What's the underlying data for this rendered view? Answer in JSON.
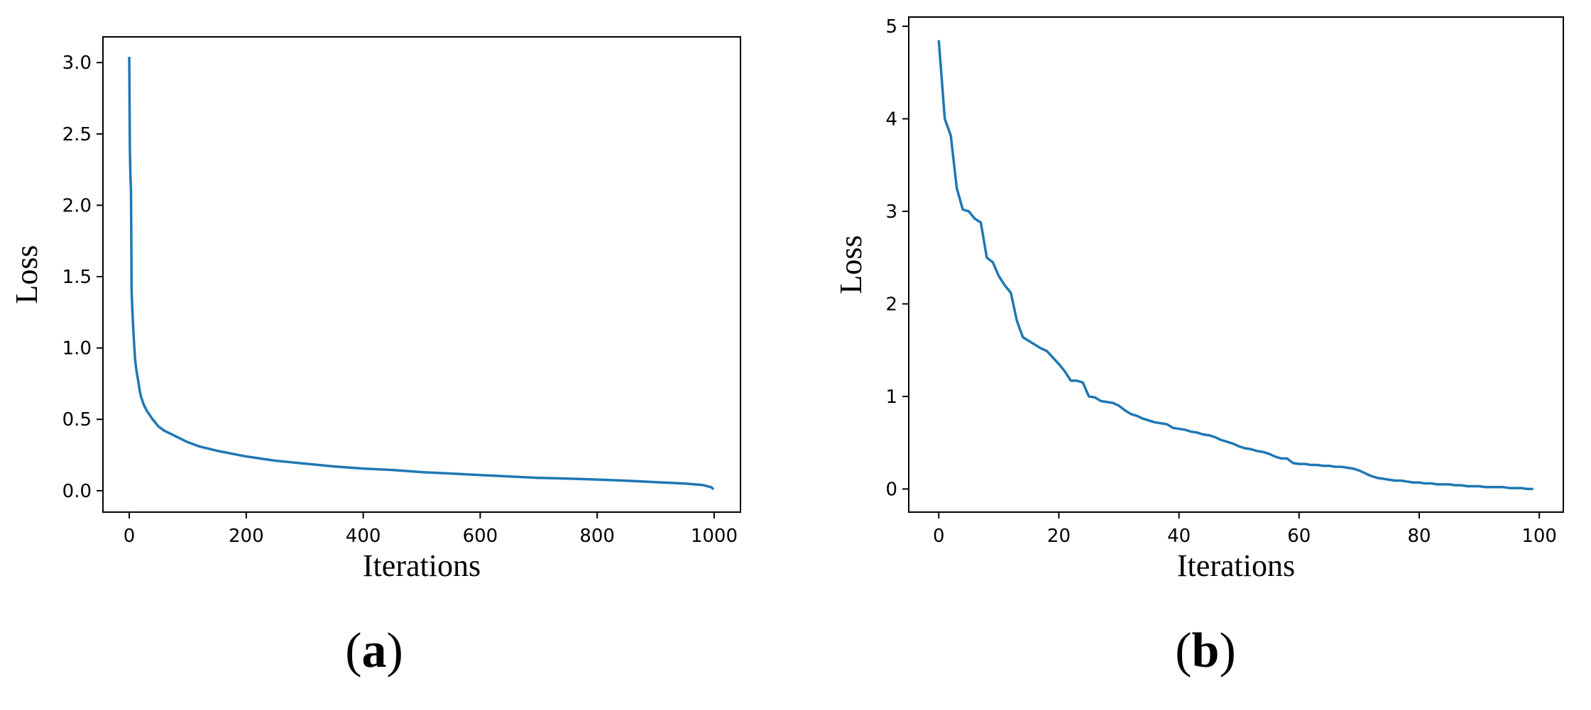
{
  "chart_data": [
    {
      "type": "line",
      "panel_label": {
        "open": "(",
        "letter": "a",
        "close": ")"
      },
      "xlabel": "Iterations",
      "ylabel": "Loss",
      "xlim": [
        -45,
        1045
      ],
      "ylim": [
        -0.15,
        3.18
      ],
      "xticks": [
        0,
        200,
        400,
        600,
        800,
        1000
      ],
      "xtick_labels": [
        "0",
        "200",
        "400",
        "600",
        "800",
        "1000"
      ],
      "yticks": [
        0.0,
        0.5,
        1.0,
        1.5,
        2.0,
        2.5,
        3.0
      ],
      "ytick_labels": [
        "0.0",
        "0.5",
        "1.0",
        "1.5",
        "2.0",
        "2.5",
        "3.0"
      ],
      "grid": false,
      "color": "#1f77b4",
      "series": [
        {
          "x": [
            0,
            1,
            2,
            3,
            4,
            5,
            6,
            8,
            10,
            12,
            14,
            16,
            18,
            20,
            25,
            30,
            35,
            40,
            50,
            60,
            70,
            80,
            90,
            100,
            120,
            150,
            200,
            250,
            300,
            350,
            400,
            450,
            500,
            550,
            600,
            650,
            700,
            750,
            800,
            850,
            900,
            950,
            980,
            995,
            999
          ],
          "y": [
            3.04,
            2.4,
            2.2,
            2.1,
            1.4,
            1.3,
            1.2,
            1.05,
            0.92,
            0.85,
            0.8,
            0.75,
            0.7,
            0.66,
            0.6,
            0.56,
            0.53,
            0.5,
            0.45,
            0.42,
            0.4,
            0.38,
            0.36,
            0.34,
            0.31,
            0.28,
            0.24,
            0.21,
            0.19,
            0.17,
            0.155,
            0.145,
            0.13,
            0.12,
            0.11,
            0.1,
            0.09,
            0.085,
            0.078,
            0.07,
            0.06,
            0.05,
            0.04,
            0.025,
            0.01
          ]
        }
      ]
    },
    {
      "type": "line",
      "panel_label": {
        "open": "(",
        "letter": "b",
        "close": ")"
      },
      "xlabel": "Iterations",
      "ylabel": "Loss",
      "xlim": [
        -5,
        104
      ],
      "ylim": [
        -0.25,
        5.1
      ],
      "xticks": [
        0,
        20,
        40,
        60,
        80,
        100
      ],
      "xtick_labels": [
        "0",
        "20",
        "40",
        "60",
        "80",
        "100"
      ],
      "yticks": [
        0,
        1,
        2,
        3,
        4,
        5
      ],
      "ytick_labels": [
        "0",
        "1",
        "2",
        "3",
        "4",
        "5"
      ],
      "grid": false,
      "color": "#1f77b4",
      "series": [
        {
          "x": [
            0,
            1,
            2,
            3,
            4,
            5,
            6,
            7,
            8,
            9,
            10,
            11,
            12,
            13,
            14,
            15,
            16,
            17,
            18,
            19,
            20,
            21,
            22,
            23,
            24,
            25,
            26,
            27,
            28,
            29,
            30,
            31,
            32,
            33,
            34,
            35,
            36,
            37,
            38,
            39,
            40,
            41,
            42,
            43,
            44,
            45,
            46,
            47,
            48,
            49,
            50,
            51,
            52,
            53,
            54,
            55,
            56,
            57,
            58,
            59,
            60,
            61,
            62,
            63,
            64,
            65,
            66,
            67,
            68,
            69,
            70,
            71,
            72,
            73,
            74,
            75,
            76,
            77,
            78,
            79,
            80,
            81,
            82,
            83,
            84,
            85,
            86,
            87,
            88,
            89,
            90,
            91,
            92,
            93,
            94,
            95,
            96,
            97,
            98,
            99
          ],
          "y": [
            4.85,
            4.0,
            3.82,
            3.25,
            3.02,
            3.0,
            2.92,
            2.88,
            2.5,
            2.45,
            2.3,
            2.2,
            2.12,
            1.82,
            1.64,
            1.6,
            1.56,
            1.52,
            1.49,
            1.42,
            1.35,
            1.27,
            1.17,
            1.17,
            1.15,
            1.0,
            0.99,
            0.95,
            0.94,
            0.93,
            0.9,
            0.85,
            0.81,
            0.79,
            0.76,
            0.74,
            0.72,
            0.71,
            0.7,
            0.66,
            0.65,
            0.64,
            0.62,
            0.61,
            0.59,
            0.58,
            0.56,
            0.53,
            0.51,
            0.49,
            0.46,
            0.44,
            0.43,
            0.41,
            0.4,
            0.38,
            0.35,
            0.33,
            0.33,
            0.28,
            0.27,
            0.27,
            0.26,
            0.26,
            0.25,
            0.25,
            0.24,
            0.24,
            0.23,
            0.22,
            0.2,
            0.17,
            0.14,
            0.12,
            0.11,
            0.1,
            0.09,
            0.09,
            0.08,
            0.07,
            0.07,
            0.06,
            0.06,
            0.05,
            0.05,
            0.05,
            0.04,
            0.04,
            0.03,
            0.03,
            0.03,
            0.02,
            0.02,
            0.02,
            0.02,
            0.01,
            0.01,
            0.01,
            0.0,
            0.0
          ]
        }
      ]
    }
  ]
}
